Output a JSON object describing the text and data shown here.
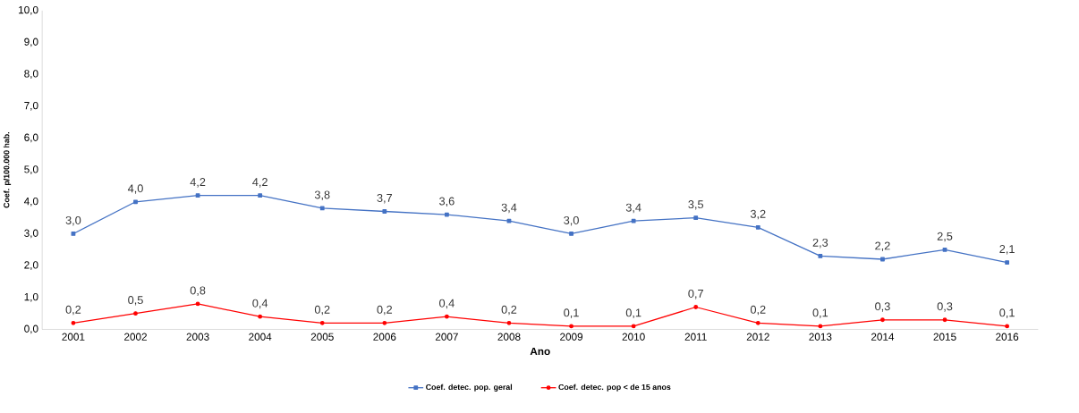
{
  "chart_data": {
    "type": "line",
    "categories": [
      "2001",
      "2002",
      "2003",
      "2004",
      "2005",
      "2006",
      "2007",
      "2008",
      "2009",
      "2010",
      "2011",
      "2012",
      "2013",
      "2014",
      "2015",
      "2016"
    ],
    "xlabel": "Ano",
    "ylabel": "Coef. p/100.000 hab.",
    "ylim": [
      0,
      10
    ],
    "yticks": [
      {
        "value": 0,
        "label": "0,0"
      },
      {
        "value": 1,
        "label": "1,0"
      },
      {
        "value": 2,
        "label": "2,0"
      },
      {
        "value": 3,
        "label": "3,0"
      },
      {
        "value": 4,
        "label": "4,0"
      },
      {
        "value": 5,
        "label": "5,0"
      },
      {
        "value": 6,
        "label": "6,0"
      },
      {
        "value": 7,
        "label": "7,0"
      },
      {
        "value": 8,
        "label": "8,0"
      },
      {
        "value": 9,
        "label": "9,0"
      },
      {
        "value": 10,
        "label": "10,0"
      }
    ],
    "legend": "bottom",
    "grid": false,
    "line_style": "solid",
    "series": [
      {
        "name": "Coef. detec. pop. geral",
        "color": "#4472c4",
        "marker": "square",
        "values": [
          3.0,
          4.0,
          4.2,
          4.2,
          3.8,
          3.7,
          3.6,
          3.4,
          3.0,
          3.4,
          3.5,
          3.2,
          2.3,
          2.2,
          2.5,
          2.1
        ],
        "value_labels": [
          "3,0",
          "4,0",
          "4,2",
          "4,2",
          "3,8",
          "3,7",
          "3,6",
          "3,4",
          "3,0",
          "3,4",
          "3,5",
          "3,2",
          "2,3",
          "2,2",
          "2,5",
          "2,1"
        ]
      },
      {
        "name": "Coef. detec. pop < de 15 anos",
        "color": "#ff0000",
        "marker": "circle",
        "values": [
          0.2,
          0.5,
          0.8,
          0.4,
          0.2,
          0.2,
          0.4,
          0.2,
          0.1,
          0.1,
          0.7,
          0.2,
          0.1,
          0.3,
          0.3,
          0.1
        ],
        "value_labels": [
          "0,2",
          "0,5",
          "0,8",
          "0,4",
          "0,2",
          "0,2",
          "0,4",
          "0,2",
          "0,1",
          "0,1",
          "0,7",
          "0,2",
          "0,1",
          "0,3",
          "0,3",
          "0,1"
        ]
      }
    ]
  }
}
